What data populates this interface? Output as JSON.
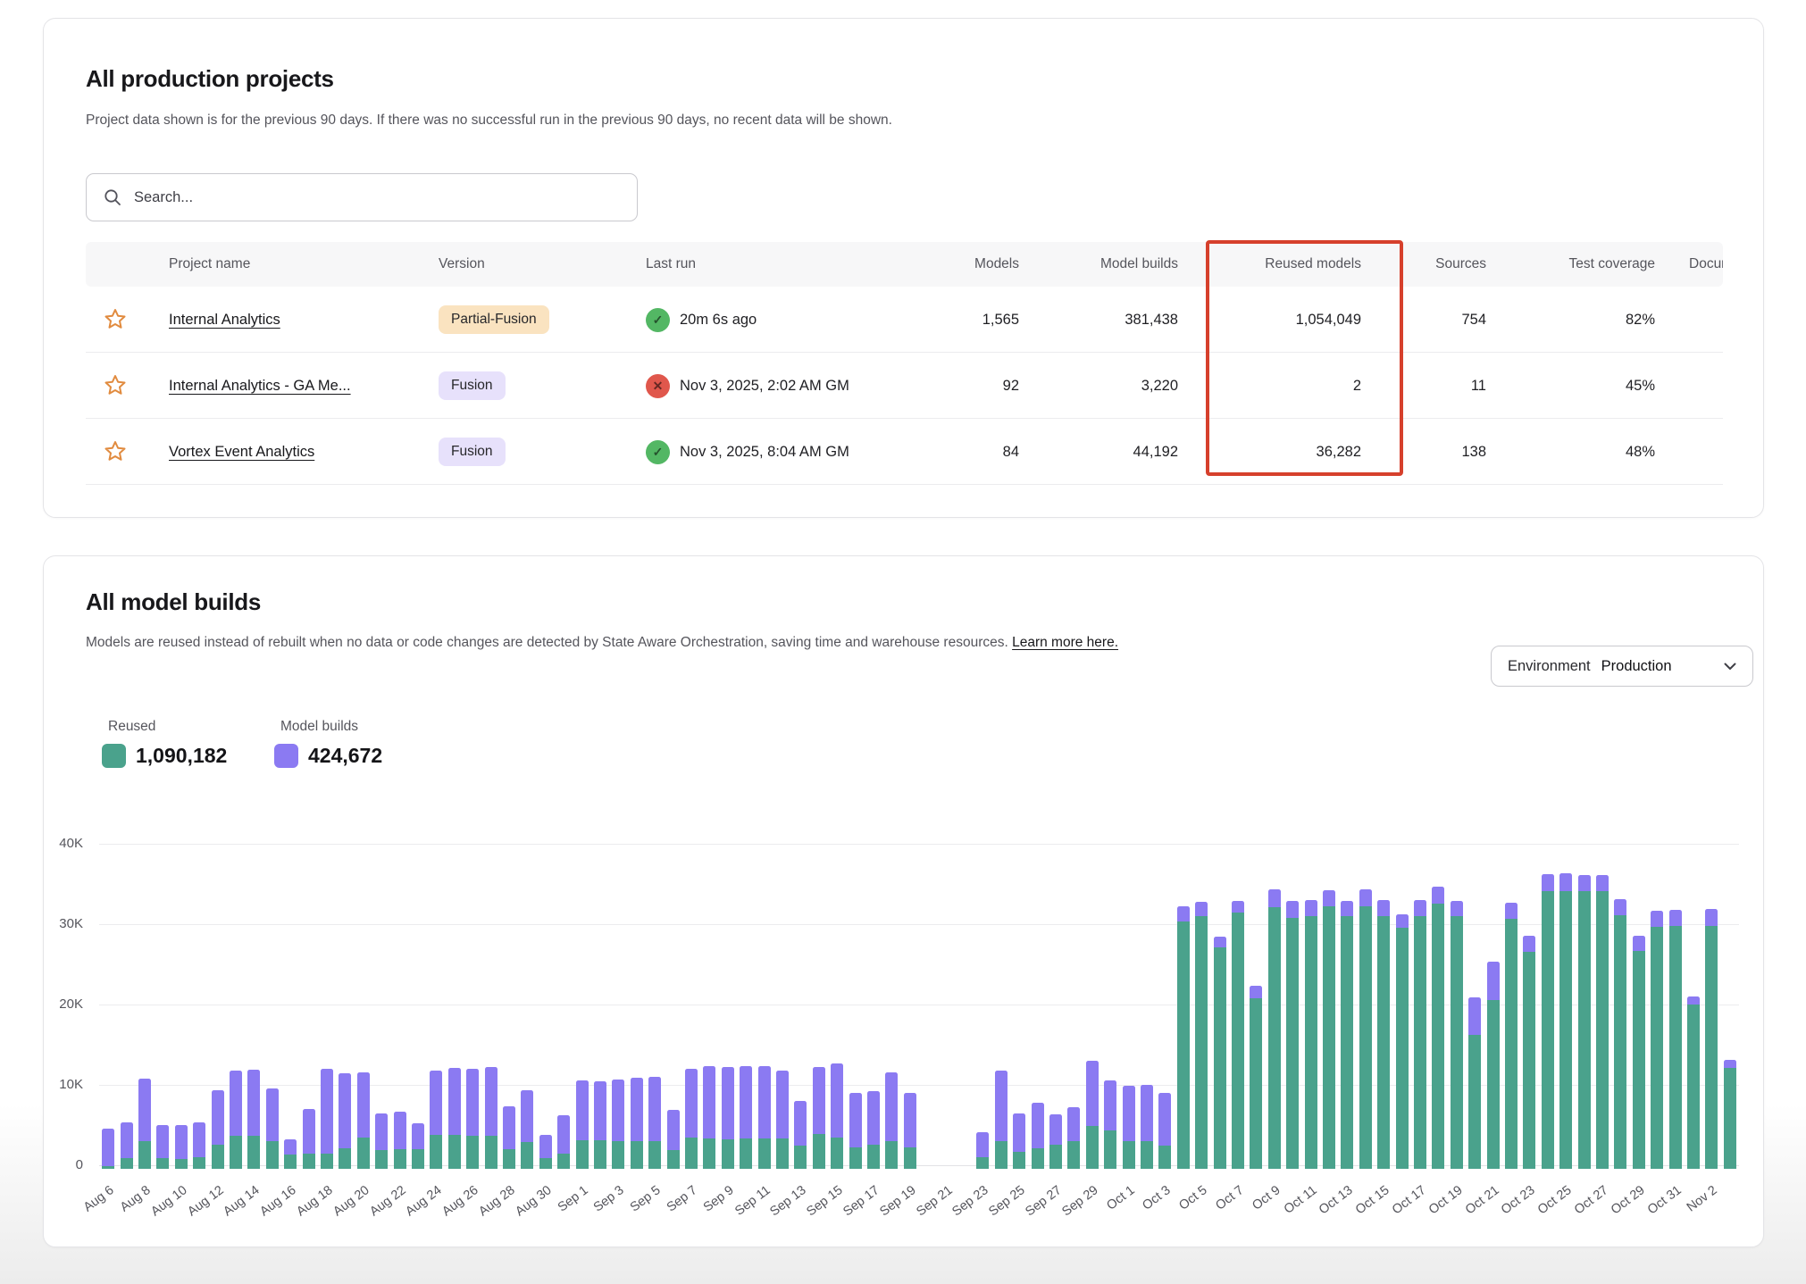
{
  "projects_card": {
    "title": "All production projects",
    "subtitle": "Project data shown is for the previous 90 days. If there was no successful run in the previous 90 days, no recent data will be shown.",
    "search_placeholder": "Search...",
    "columns": [
      "Project name",
      "Version",
      "Last run",
      "Models",
      "Model builds",
      "Reused models",
      "Sources",
      "Test coverage",
      "Documentation"
    ],
    "rows": [
      {
        "name": "Internal Analytics",
        "version": "Partial-Fusion",
        "version_style": "peach",
        "status": "success",
        "last_run": "20m 6s ago",
        "models": "1,565",
        "model_builds": "381,438",
        "reused_models": "1,054,049",
        "sources": "754",
        "test_coverage": "82%"
      },
      {
        "name": "Internal Analytics - GA Me...",
        "version": "Fusion",
        "version_style": "lavender",
        "status": "error",
        "last_run": "Nov 3, 2025, 2:02 AM GMT",
        "models": "92",
        "model_builds": "3,220",
        "reused_models": "2",
        "sources": "11",
        "test_coverage": "45%"
      },
      {
        "name": "Vortex Event Analytics",
        "version": "Fusion",
        "version_style": "lavender",
        "status": "success",
        "last_run": "Nov 3, 2025, 8:04 AM GMT",
        "models": "84",
        "model_builds": "44,192",
        "reused_models": "36,282",
        "sources": "138",
        "test_coverage": "48%"
      }
    ],
    "highlight_color": "#d6402c"
  },
  "builds_card": {
    "title": "All model builds",
    "subtitle": "Models are reused instead of rebuilt when no data or code changes are detected by State Aware Orchestration, saving time and warehouse resources.",
    "learn_more": "Learn more here.",
    "env_label": "Environment",
    "env_value": "Production",
    "legend": {
      "reused_label": "Reused",
      "reused_value": "1,090,182",
      "reused_color": "#4aa28c",
      "builds_label": "Model builds",
      "builds_value": "424,672",
      "builds_color": "#8b7af2"
    }
  },
  "chart_data": {
    "type": "bar",
    "stacked": true,
    "ylabel": "",
    "xlabel": "",
    "ylim": [
      0,
      40000
    ],
    "yticks": [
      "0",
      "10K",
      "20K",
      "30K",
      "40K"
    ],
    "grid": true,
    "legend_position": "top-left",
    "x": [
      "Aug 6",
      "Aug 7",
      "Aug 8",
      "Aug 9",
      "Aug 10",
      "Aug 11",
      "Aug 12",
      "Aug 13",
      "Aug 14",
      "Aug 15",
      "Aug 16",
      "Aug 17",
      "Aug 18",
      "Aug 19",
      "Aug 20",
      "Aug 21",
      "Aug 22",
      "Aug 23",
      "Aug 24",
      "Aug 25",
      "Aug 26",
      "Aug 27",
      "Aug 28",
      "Aug 29",
      "Aug 30",
      "Aug 31",
      "Sep 1",
      "Sep 2",
      "Sep 3",
      "Sep 4",
      "Sep 5",
      "Sep 6",
      "Sep 7",
      "Sep 8",
      "Sep 9",
      "Sep 10",
      "Sep 11",
      "Sep 12",
      "Sep 13",
      "Sep 14",
      "Sep 15",
      "Sep 16",
      "Sep 17",
      "Sep 18",
      "Sep 19",
      "Sep 20",
      "Sep 21",
      "Sep 22",
      "Sep 23",
      "Sep 24",
      "Sep 25",
      "Sep 26",
      "Sep 27",
      "Sep 28",
      "Sep 29",
      "Sep 30",
      "Oct 1",
      "Oct 2",
      "Oct 3",
      "Oct 4",
      "Oct 5",
      "Oct 6",
      "Oct 7",
      "Oct 8",
      "Oct 9",
      "Oct 10",
      "Oct 11",
      "Oct 12",
      "Oct 13",
      "Oct 14",
      "Oct 15",
      "Oct 16",
      "Oct 17",
      "Oct 18",
      "Oct 19",
      "Oct 20",
      "Oct 21",
      "Oct 22",
      "Oct 23",
      "Oct 24",
      "Oct 25",
      "Oct 26",
      "Oct 27",
      "Oct 28",
      "Oct 29",
      "Oct 30",
      "Oct 31",
      "Nov 1",
      "Nov 2",
      "Nov 3"
    ],
    "series": [
      {
        "name": "Reused",
        "color": "#4aa28c",
        "values": [
          300,
          1300,
          3500,
          1300,
          1200,
          1500,
          3000,
          4100,
          4100,
          3400,
          1800,
          1900,
          1900,
          2600,
          3900,
          2300,
          2500,
          2400,
          4200,
          4200,
          4100,
          4100,
          2500,
          3300,
          1300,
          1900,
          3600,
          3600,
          3500,
          3400,
          3400,
          2300,
          3900,
          3800,
          3700,
          3800,
          3800,
          3800,
          2900,
          4300,
          3900,
          2700,
          3000,
          3500,
          2700,
          0,
          0,
          0,
          1500,
          3500,
          2100,
          2600,
          3000,
          3400,
          5300,
          4800,
          3500,
          3500,
          2900,
          30800,
          31500,
          27600,
          31900,
          21200,
          32600,
          31200,
          31400,
          32700,
          31400,
          32700,
          31400,
          30000,
          31500,
          33000,
          31500,
          16700,
          21000,
          31100,
          27000,
          34600,
          34600,
          34600,
          34600,
          31600,
          27100,
          30100,
          30200,
          20400,
          30200,
          12600
        ]
      },
      {
        "name": "Model builds",
        "color": "#8b7af2",
        "values": [
          4700,
          4500,
          7700,
          4200,
          4300,
          4300,
          6800,
          8100,
          8200,
          6600,
          1900,
          5500,
          10500,
          9300,
          8100,
          4600,
          4600,
          3300,
          8000,
          8400,
          8400,
          8600,
          5300,
          6500,
          2900,
          4800,
          7400,
          7300,
          7600,
          7900,
          8100,
          5000,
          8500,
          9000,
          9000,
          9000,
          9000,
          8400,
          5600,
          8400,
          9200,
          6800,
          6700,
          8500,
          6700,
          0,
          0,
          0,
          3100,
          8700,
          4800,
          5600,
          3800,
          4300,
          8100,
          6200,
          6800,
          7000,
          6500,
          1900,
          1700,
          1300,
          1400,
          1600,
          2200,
          2100,
          2100,
          2000,
          1900,
          2100,
          2000,
          1700,
          2000,
          2100,
          1800,
          4600,
          4800,
          2000,
          2000,
          2100,
          2200,
          2000,
          2000,
          2000,
          1900,
          2000,
          2000,
          1100,
          2100,
          1000
        ]
      }
    ]
  }
}
